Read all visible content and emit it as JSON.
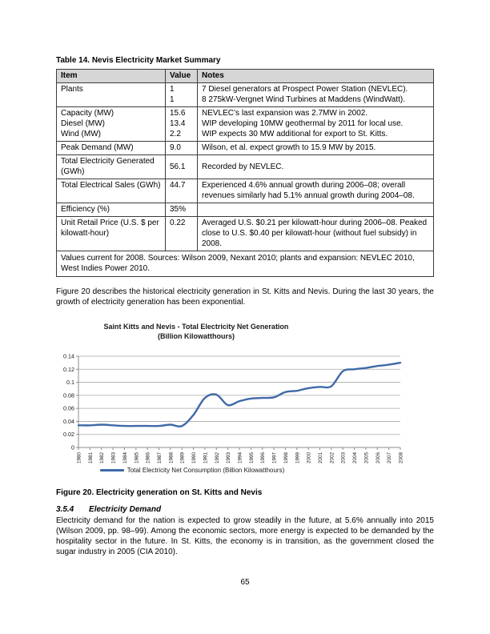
{
  "page": {
    "number": "65"
  },
  "table": {
    "title": "Table 14. Nevis Electricity Market Summary",
    "headers": [
      "Item",
      "Value",
      "Notes"
    ],
    "rows": [
      {
        "item": [
          "Plants"
        ],
        "value": [
          "1",
          "1"
        ],
        "notes": [
          "7 Diesel generators at Prospect Power Station (NEVLEC).",
          "8 275kW-Vergnet Wind Turbines at Maddens (WindWatt)."
        ]
      },
      {
        "item": [
          "Capacity (MW)",
          "Diesel (MW)",
          "Wind (MW)"
        ],
        "value": [
          "15.6",
          "13.4",
          "2.2"
        ],
        "notes": [
          "NEVLEC’s last expansion was 2.7MW in 2002.",
          "WIP developing 10MW geothermal by 2011 for local use.",
          "WIP expects 30 MW additional for export to St. Kitts."
        ]
      },
      {
        "item": [
          "Peak Demand (MW)"
        ],
        "value": [
          "9.0"
        ],
        "notes": [
          "Wilson, et al. expect growth to 15.9 MW by 2015."
        ]
      },
      {
        "item": [
          "Total Electricity Generated (GWh)"
        ],
        "value": [
          "56.1"
        ],
        "notes": [
          "Recorded by NEVLEC."
        ],
        "valign": "middle"
      },
      {
        "item": [
          "Total Electrical Sales (GWh)"
        ],
        "value": [
          "44.7"
        ],
        "notes": [
          "Experienced 4.6% annual growth during 2006–08; overall revenues similarly had 5.1% annual growth during 2004–08."
        ]
      },
      {
        "item": [
          "Efficiency (%)"
        ],
        "value": [
          "35%"
        ],
        "notes": [
          ""
        ]
      },
      {
        "item": [
          "Unit Retail Price (U.S. $ per kilowatt-hour)"
        ],
        "value": [
          "0.22"
        ],
        "notes": [
          "Averaged U.S. $0.21 per kilowatt-hour during 2006–08. Peaked close to U.S. $0.40 per kilowatt-hour (without fuel subsidy) in 2008."
        ]
      }
    ],
    "footer": "Values current for 2008. Sources: Wilson 2009, Nexant 2010; plants and expansion: NEVLEC 2010, West Indies Power 2010."
  },
  "paragraphs": {
    "intro": "Figure 20 describes the historical electricity generation in St. Kitts and Nevis. During the last 30 years, the growth of electricity generation has been exponential."
  },
  "chart_data": {
    "type": "line",
    "title": "Saint Kitts and Nevis - Total Electricity Net Generation",
    "subtitle": "(Billion Kilowatthours)",
    "legend": "Total Electricity Net Consumption (Billion Kilowatthours)",
    "legend_position": "bottom",
    "xlabel": "",
    "ylabel": "",
    "ylim": [
      0,
      0.14
    ],
    "y_ticks": [
      "0",
      "0.02",
      "0.04",
      "0.06",
      "0.08",
      "0.1",
      "0.12",
      "0.14"
    ],
    "grid": true,
    "line_color": "#3f69a8",
    "grid_color": "#a9a9a9",
    "axis_color": "#8c8c8c",
    "categories": [
      "1980",
      "1981",
      "1982",
      "1983",
      "1984",
      "1985",
      "1986",
      "1987",
      "1988",
      "1989",
      "1990",
      "1991",
      "1992",
      "1993",
      "1994",
      "1995",
      "1996",
      "1997",
      "1998",
      "1999",
      "2000",
      "2001",
      "2002",
      "2003",
      "2004",
      "2005",
      "2006",
      "2007",
      "2008"
    ],
    "series": [
      {
        "name": "Total Electricity Net Consumption (Billion Kilowatthours)",
        "values": [
          0.034,
          0.034,
          0.035,
          0.034,
          0.033,
          0.033,
          0.033,
          0.033,
          0.035,
          0.033,
          0.05,
          0.076,
          0.081,
          0.065,
          0.071,
          0.075,
          0.076,
          0.077,
          0.085,
          0.087,
          0.091,
          0.093,
          0.094,
          0.117,
          0.12,
          0.122,
          0.125,
          0.127,
          0.13
        ]
      }
    ]
  },
  "figure": {
    "caption": "Figure 20. Electricity generation on St. Kitts and Nevis"
  },
  "section": {
    "number": "3.5.4",
    "title": "Electricity Demand",
    "body": "Electricity demand for the nation is expected to grow steadily in the future, at 5.6% annually into 2015 (Wilson 2009, pp. 98–99). Among the economic sectors, more energy is expected to be demanded by the hospitality sector in the future. In St. Kitts, the economy is in transition, as the government closed the sugar industry in 2005 (CIA 2010)."
  }
}
